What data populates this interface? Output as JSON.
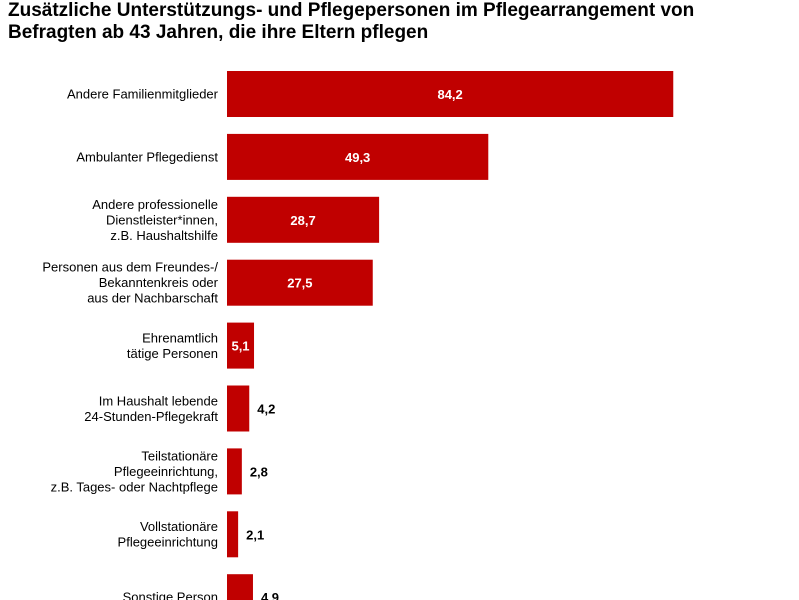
{
  "title": "Zusätzliche Unterstützungs- und Pflegepersonen im Pflegearrangement von\nBefragten ab 43 Jahren, die ihre Eltern pflegen",
  "bar_color": "#c00000",
  "chart_data": {
    "type": "bar",
    "orientation": "horizontal",
    "title": "Zusätzliche Unterstützungs- und Pflegepersonen im Pflegearrangement von Befragten ab 43 Jahren, die ihre Eltern pflegen",
    "categories": [
      "Andere Familienmitglieder",
      "Ambulanter Pflegedienst",
      "Andere professionelle\nDienstleister*innen,\nz.B. Haushaltshilfe",
      "Personen aus dem Freundes-/\nBekanntenkreis oder\naus der Nachbarschaft",
      "Ehrenamtlich\ntätige Personen",
      "Im Haushalt lebende\n24-Stunden-Pflegekraft",
      "Teilstationäre\nPflegeeinrichtung,\nz.B. Tages- oder Nachtpflege",
      "Vollstationäre\nPflegeeinrichtung",
      "Sonstige Person"
    ],
    "values": [
      84.2,
      49.3,
      28.7,
      27.5,
      5.1,
      4.2,
      2.8,
      2.1,
      4.9
    ],
    "value_labels": [
      "84,2",
      "49,3",
      "28,7",
      "27,5",
      "5,1",
      "4,2",
      "2,8",
      "2,1",
      "4,9"
    ],
    "xlim": [
      0,
      100
    ],
    "grid": false,
    "legend": "none"
  }
}
